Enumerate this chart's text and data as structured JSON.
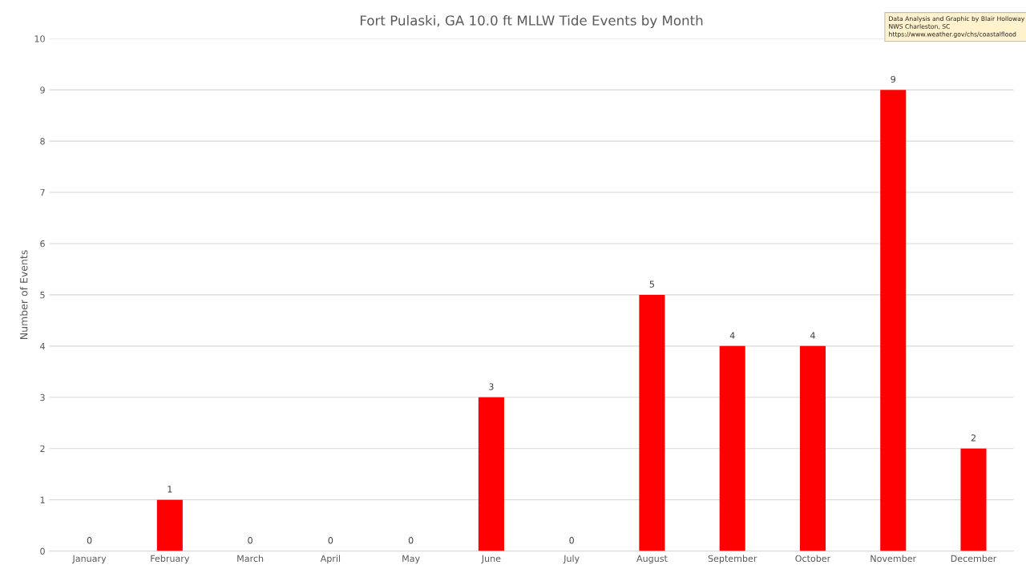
{
  "chart_data": {
    "type": "bar",
    "title": "Fort Pulaski, GA 10.0 ft MLLW Tide Events by Month",
    "ylabel": "Number of Events",
    "categories": [
      "January",
      "February",
      "March",
      "April",
      "May",
      "June",
      "July",
      "August",
      "September",
      "October",
      "November",
      "December"
    ],
    "values": [
      0,
      1,
      0,
      0,
      0,
      3,
      0,
      5,
      4,
      4,
      9,
      2
    ],
    "color": "#ff0000",
    "ylim": [
      0,
      10
    ],
    "yticks": [
      0,
      1,
      2,
      3,
      4,
      5,
      6,
      7,
      8,
      9,
      10
    ],
    "grid": "y",
    "data_labels": true,
    "annotations": [
      "Data Analysis and Graphic by Blair Holloway",
      "NWS Charleston, SC",
      "https://www.weather.gov/chs/coastalflood"
    ]
  }
}
